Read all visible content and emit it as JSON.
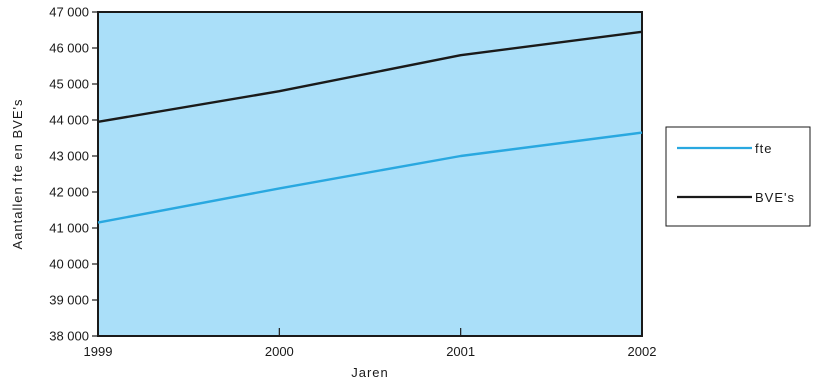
{
  "chart_data": {
    "type": "line",
    "x": [
      1999,
      2000,
      2001,
      2002
    ],
    "x_tick_labels": [
      "1999",
      "2000",
      "2001",
      "2002"
    ],
    "xlabel": "Jaren",
    "ylabel": "Aantallen fte en BVE's",
    "ylim": [
      38000,
      47000
    ],
    "y_ticks": [
      38000,
      39000,
      40000,
      41000,
      42000,
      43000,
      44000,
      45000,
      46000,
      47000
    ],
    "y_tick_labels": [
      "38 000",
      "39 000",
      "40 000",
      "41 000",
      "42 000",
      "43 000",
      "44 000",
      "45 000",
      "46 000",
      "47 000"
    ],
    "grid": false,
    "legend_position": "right",
    "series": [
      {
        "name": "fte",
        "values": [
          41150,
          42100,
          43000,
          43650
        ],
        "color": "#29a8e0"
      },
      {
        "name": "BVE's",
        "values": [
          43950,
          44800,
          45800,
          46450
        ],
        "color": "#1a1a1a"
      }
    ],
    "plot_background": "#aadff9"
  }
}
